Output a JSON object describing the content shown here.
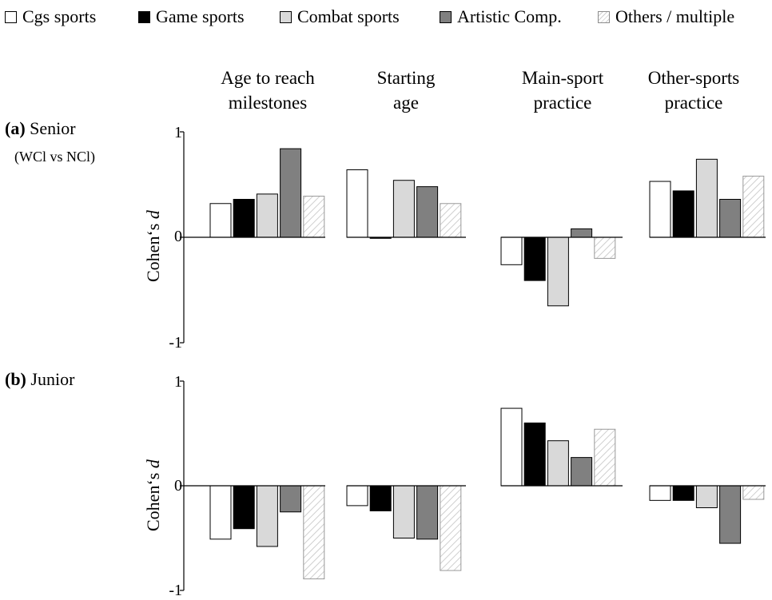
{
  "legend": [
    {
      "name": "Cgs sports",
      "fill": "#ffffff",
      "hatch": false
    },
    {
      "name": "Game sports",
      "fill": "#000000",
      "hatch": false
    },
    {
      "name": "Combat sports",
      "fill": "#d9d9d9",
      "hatch": false
    },
    {
      "name": "Artistic Comp.",
      "fill": "#808080",
      "hatch": false
    },
    {
      "name": "Others / multiple",
      "fill": "#ffffff",
      "hatch": true
    }
  ],
  "columns": [
    {
      "line1": "Age to reach",
      "line2": "milestones"
    },
    {
      "line1": "Starting",
      "line2": "age"
    },
    {
      "line1": "Main-sport",
      "line2": "practice"
    },
    {
      "line1": "Other-sports",
      "line2": "practice"
    }
  ],
  "panels": [
    {
      "tag": "(a)",
      "title": "Senior",
      "subtitle": "(WCl vs NCl)"
    },
    {
      "tag": "(b)",
      "title": "Junior",
      "subtitle": ""
    }
  ],
  "ylabel_prefix": "Cohen‘s ",
  "ylabel_var": "d",
  "ticks": [
    "1",
    "0",
    "-1"
  ],
  "chart_data": [
    {
      "type": "bar",
      "title": "Senior (WCl vs NCl)",
      "ylabel": "Cohen‘s d",
      "ylim": [
        -1,
        1
      ],
      "categories": [
        "Age to reach milestones",
        "Starting age",
        "Main-sport practice",
        "Other-sports practice"
      ],
      "series": [
        {
          "name": "Cgs sports",
          "values": [
            0.32,
            0.64,
            -0.26,
            0.53
          ]
        },
        {
          "name": "Game sports",
          "values": [
            0.36,
            -0.01,
            -0.41,
            0.44
          ]
        },
        {
          "name": "Combat sports",
          "values": [
            0.41,
            0.54,
            -0.65,
            0.74
          ]
        },
        {
          "name": "Artistic Comp.",
          "values": [
            0.84,
            0.48,
            0.08,
            0.36
          ]
        },
        {
          "name": "Others / multiple",
          "values": [
            0.39,
            0.32,
            -0.2,
            0.58
          ]
        }
      ]
    },
    {
      "type": "bar",
      "title": "Junior",
      "ylabel": "Cohen‘s d",
      "ylim": [
        -1,
        1
      ],
      "categories": [
        "Age to reach milestones",
        "Starting age",
        "Main-sport practice",
        "Other-sports practice"
      ],
      "series": [
        {
          "name": "Cgs sports",
          "values": [
            -0.51,
            -0.19,
            0.74,
            -0.14
          ]
        },
        {
          "name": "Game sports",
          "values": [
            -0.41,
            -0.24,
            0.6,
            -0.14
          ]
        },
        {
          "name": "Combat sports",
          "values": [
            -0.58,
            -0.5,
            0.43,
            -0.21
          ]
        },
        {
          "name": "Artistic Comp.",
          "values": [
            -0.25,
            -0.51,
            0.27,
            -0.55
          ]
        },
        {
          "name": "Others / multiple",
          "values": [
            -0.89,
            -0.81,
            0.54,
            -0.13
          ]
        }
      ]
    }
  ]
}
